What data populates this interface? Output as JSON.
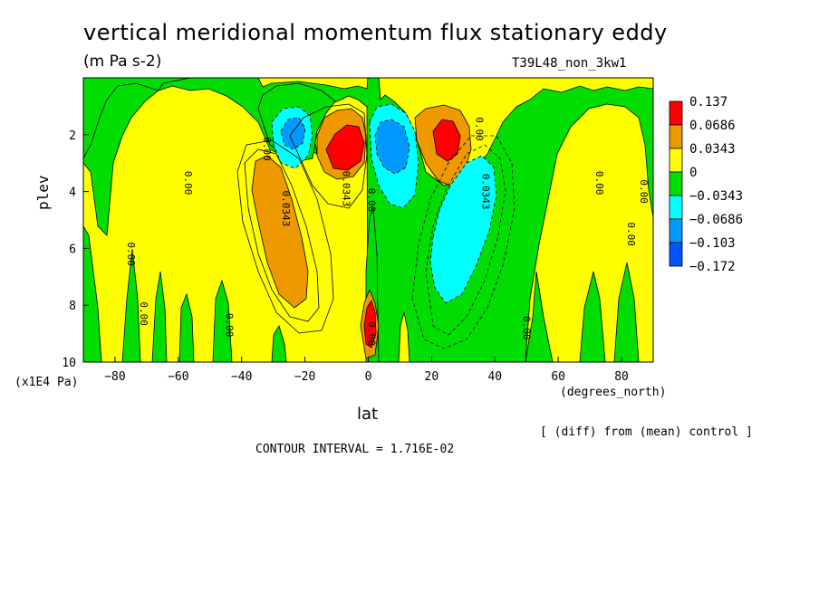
{
  "header": {
    "title": "vertical meridional momentum flux stationary eddy",
    "units": "(m Pa s-2)",
    "run_name": "T39L48_non_3kw1"
  },
  "footer": {
    "diff_note": "[ (diff) from (mean) control ]",
    "contour_interval": "CONTOUR INTERVAL = 1.716E-02"
  },
  "chart_data": {
    "type": "heatmap",
    "title": "vertical meridional momentum flux stationary eddy",
    "subtitle": "(m Pa s-2)",
    "xlabel": "lat",
    "x_unit": "(degrees_north)",
    "ylabel": "plev",
    "y_unit": "(x1E4 Pa)",
    "xlim": [
      -90,
      90
    ],
    "ylim": [
      10,
      0
    ],
    "y_inverted": true,
    "x_ticks": [
      -80,
      -60,
      -40,
      -20,
      0,
      20,
      40,
      60,
      80
    ],
    "x_tick_labels": [
      "−80",
      "−60",
      "−40",
      "−20",
      "0",
      "20",
      "40",
      "60",
      "80"
    ],
    "y_ticks": [
      2,
      4,
      6,
      8,
      10
    ],
    "y_tick_labels": [
      "2",
      "4",
      "6",
      "8",
      "10"
    ],
    "contour_interval": 0.01716,
    "legend": {
      "position": "right",
      "bounds": [
        0.137,
        0.0686,
        0.0343,
        0,
        -0.0343,
        -0.0686,
        -0.103,
        -0.172
      ],
      "labels": [
        "0.137",
        "0.0686",
        "0.0343",
        "0",
        "−0.0343",
        "−0.0686",
        "−0.103",
        "−0.172"
      ],
      "colors": [
        "#ff0000",
        "#ee9900",
        "#ffff00",
        "#00dd00",
        "#00ffff",
        "#0099ff",
        "#0055ff"
      ]
    },
    "contour_labels": [
      {
        "text": "0.00",
        "lat": -76,
        "plev": 6.2
      },
      {
        "text": "0.00",
        "lat": -72,
        "plev": 8.3
      },
      {
        "text": "0.00",
        "lat": -58,
        "plev": 3.7
      },
      {
        "text": "0.00",
        "lat": -45,
        "plev": 8.7
      },
      {
        "text": "0.00",
        "lat": -33,
        "plev": 2.5
      },
      {
        "text": "0.0343",
        "lat": -27,
        "plev": 4.6
      },
      {
        "text": "0.0343",
        "lat": -8,
        "plev": 3.9
      },
      {
        "text": "0.00",
        "lat": 0,
        "plev": 4.3
      },
      {
        "text": "0.00",
        "lat": 0,
        "plev": 9.0
      },
      {
        "text": "0.00",
        "lat": 34,
        "plev": 1.8
      },
      {
        "text": "0.0343",
        "lat": 36,
        "plev": 4.0
      },
      {
        "text": "0.00",
        "lat": 49,
        "plev": 8.8
      },
      {
        "text": "0.00",
        "lat": 72,
        "plev": 3.7
      },
      {
        "text": "0.00",
        "lat": 82,
        "plev": 5.5
      },
      {
        "text": "0.00",
        "lat": 86,
        "plev": 4.0
      }
    ]
  }
}
